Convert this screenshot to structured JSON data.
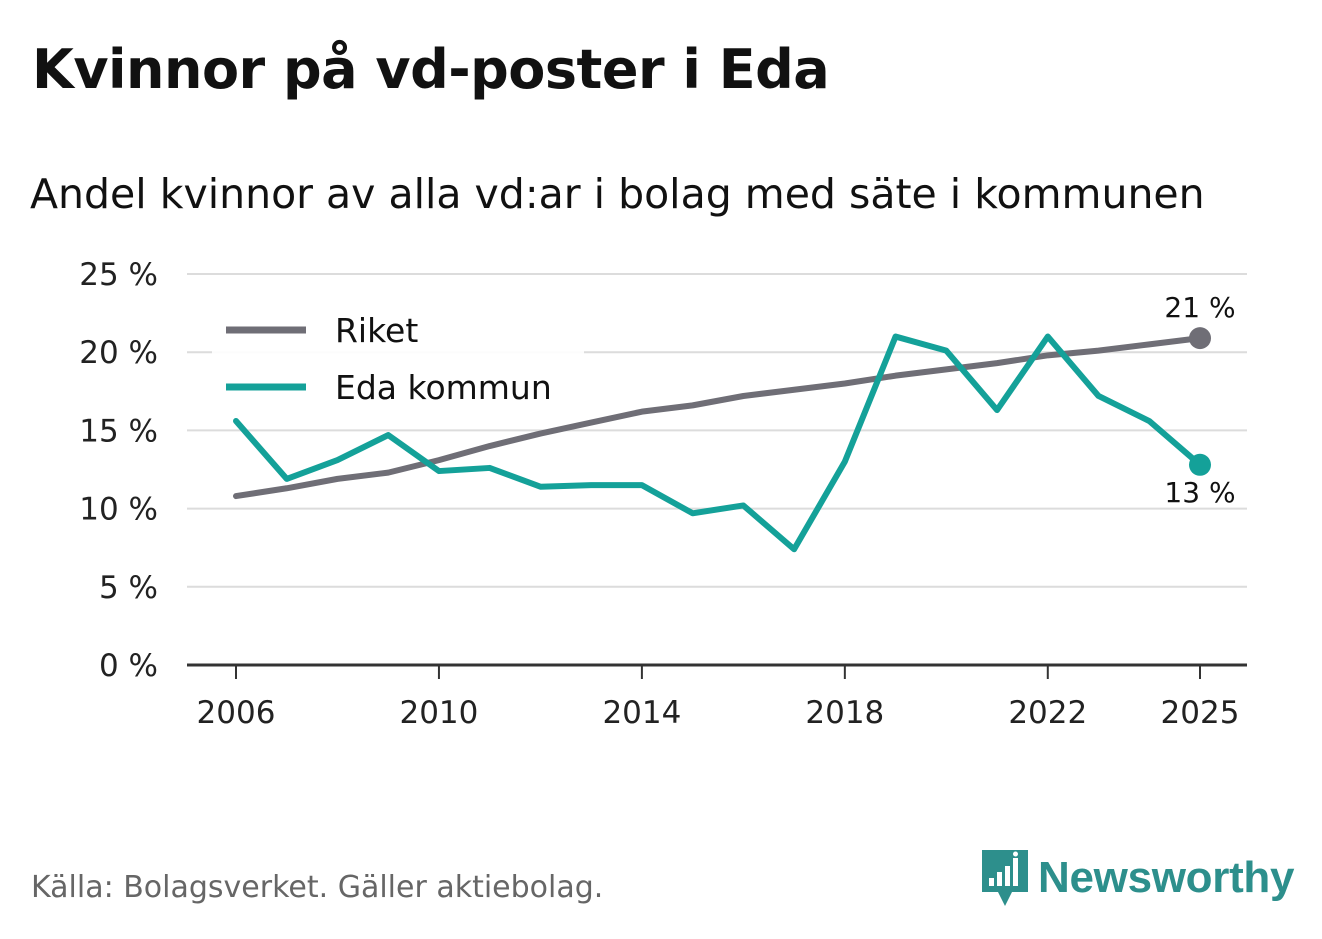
{
  "title": "Kvinnor på vd-poster i Eda",
  "subtitle": "Andel kvinnor av alla vd:ar i bolag med säte i kommunen",
  "source": "Källa: Bolagsverket. Gäller aktiebolag.",
  "brand": "Newsworthy",
  "chart_data": {
    "type": "line",
    "title": "Kvinnor på vd-poster i Eda",
    "subtitle": "Andel kvinnor av alla vd:ar i bolag med säte i kommunen",
    "xlabel": "",
    "ylabel": "",
    "x": [
      2006,
      2007,
      2008,
      2009,
      2010,
      2011,
      2012,
      2013,
      2014,
      2015,
      2016,
      2017,
      2018,
      2019,
      2020,
      2021,
      2022,
      2023,
      2024,
      2025
    ],
    "xticks": [
      2006,
      2010,
      2014,
      2018,
      2022,
      2025
    ],
    "xtick_labels": [
      "2006",
      "2010",
      "2014",
      "2018",
      "2022",
      "2025"
    ],
    "ylim": [
      0,
      25
    ],
    "yticks": [
      0,
      5,
      10,
      15,
      20,
      25
    ],
    "ytick_labels": [
      "0 %",
      "5 %",
      "10 %",
      "15 %",
      "20 %",
      "25 %"
    ],
    "grid": true,
    "legend_position": "top-left",
    "series": [
      {
        "name": "Riket",
        "color": "#6f6e76",
        "values": [
          10.8,
          11.3,
          11.9,
          12.3,
          13.1,
          14.0,
          14.8,
          15.5,
          16.2,
          16.6,
          17.2,
          17.6,
          18.0,
          18.5,
          18.9,
          19.3,
          19.8,
          20.1,
          20.5,
          20.9
        ],
        "end_label": "21 %"
      },
      {
        "name": "Eda kommun",
        "color": "#14a199",
        "values": [
          15.6,
          11.9,
          13.1,
          14.7,
          12.4,
          12.6,
          11.4,
          11.5,
          11.5,
          9.7,
          10.2,
          7.4,
          13.0,
          21.0,
          20.1,
          16.3,
          21.0,
          17.2,
          15.6,
          12.8
        ],
        "end_label": "13 %"
      }
    ]
  }
}
